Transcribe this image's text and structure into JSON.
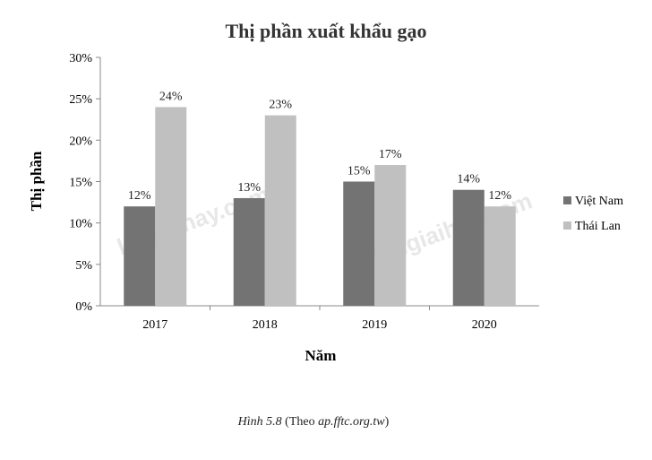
{
  "chart_data": {
    "type": "bar",
    "title": "Thị phần xuất khẩu gạo",
    "xlabel": "Năm",
    "ylabel": "Thị phần",
    "categories": [
      "2017",
      "2018",
      "2019",
      "2020"
    ],
    "series": [
      {
        "name": "Việt Nam",
        "values": [
          12,
          13,
          15,
          14
        ],
        "labels": [
          "12%",
          "13%",
          "15%",
          "14%"
        ],
        "color": "#737373"
      },
      {
        "name": "Thái Lan",
        "values": [
          24,
          23,
          17,
          12
        ],
        "labels": [
          "24%",
          "23%",
          "17%",
          "12%"
        ],
        "color": "#c0c0c0"
      }
    ],
    "ylim": [
      0,
      30
    ],
    "yticks": [
      0,
      5,
      10,
      15,
      20,
      25,
      30
    ],
    "ytick_labels": [
      "0%",
      "5%",
      "10%",
      "15%",
      "20%",
      "25%",
      "30%"
    ],
    "grid": false,
    "legend_position": "right"
  },
  "caption": {
    "figure": "Hình 5.8",
    "source_prefix": " (Theo ",
    "source": "ap.fftc.org.tw",
    "source_suffix": ")"
  },
  "watermarks": [
    "loigiaihay.com",
    "Loigiaihay.com"
  ]
}
